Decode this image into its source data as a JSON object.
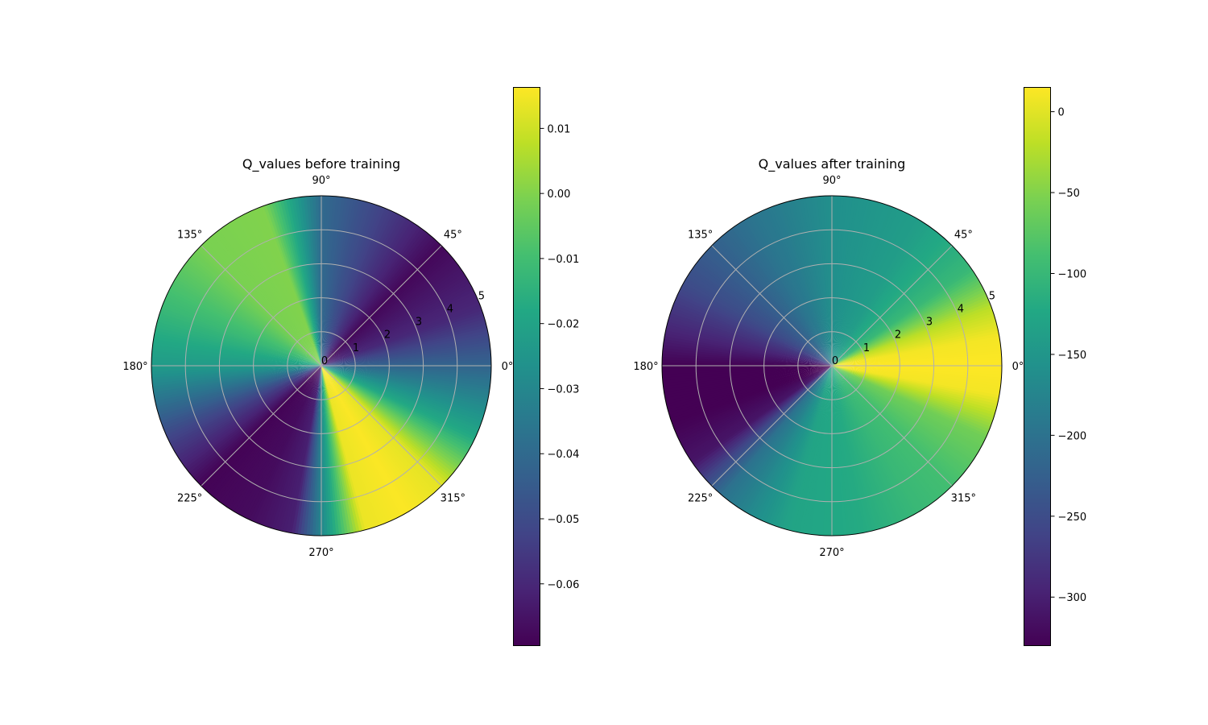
{
  "chart_data": [
    {
      "type": "heatmap",
      "subtype": "polar",
      "title": "Q_values before training",
      "theta_tick_labels": [
        "0°",
        "45°",
        "90°",
        "135°",
        "180°",
        "225°",
        "270°",
        "315°"
      ],
      "theta_ticks_deg": [
        0,
        45,
        90,
        135,
        180,
        225,
        270,
        315
      ],
      "r_tick_labels": [
        "0",
        "1",
        "2",
        "3",
        "4",
        "5"
      ],
      "r_ticks": [
        0,
        1,
        2,
        3,
        4,
        5
      ],
      "rlim": [
        0,
        5
      ],
      "grid": true,
      "colormap": "viridis",
      "colorbar": {
        "range": [
          -0.0695,
          0.0163
        ],
        "ticks": [
          0.01,
          0.0,
          -0.01,
          -0.02,
          -0.03,
          -0.04,
          -0.05,
          -0.06
        ],
        "tick_labels": [
          "0.01",
          "0.00",
          "−0.01",
          "−0.02",
          "−0.03",
          "−0.04",
          "−0.05",
          "−0.06"
        ]
      },
      "value_by_angle": {
        "angle_deg": [
          0,
          20,
          45,
          70,
          90,
          110,
          135,
          160,
          180,
          205,
          225,
          245,
          260,
          270,
          285,
          300,
          315,
          335,
          360
        ],
        "value": [
          -0.042,
          -0.06,
          -0.068,
          -0.052,
          -0.04,
          0.0,
          -0.001,
          -0.012,
          -0.023,
          -0.052,
          -0.069,
          -0.067,
          -0.062,
          -0.03,
          0.014,
          0.016,
          0.013,
          -0.018,
          -0.042
        ]
      }
    },
    {
      "type": "heatmap",
      "subtype": "polar",
      "title": "Q_values after training",
      "theta_tick_labels": [
        "0°",
        "45°",
        "90°",
        "135°",
        "180°",
        "225°",
        "270°",
        "315°"
      ],
      "theta_ticks_deg": [
        0,
        45,
        90,
        135,
        180,
        225,
        270,
        315
      ],
      "r_tick_labels": [
        "0",
        "1",
        "2",
        "3",
        "4",
        "5"
      ],
      "r_ticks": [
        0,
        1,
        2,
        3,
        4,
        5
      ],
      "rlim": [
        0,
        5
      ],
      "grid": true,
      "colormap": "viridis",
      "colorbar": {
        "range": [
          -330,
          15
        ],
        "ticks": [
          0,
          -50,
          -100,
          -150,
          -200,
          -250,
          -300
        ],
        "tick_labels": [
          "0",
          "−50",
          "−100",
          "−150",
          "−200",
          "−250",
          "−300"
        ]
      },
      "value_by_angle": {
        "angle_deg": [
          0,
          10,
          20,
          35,
          60,
          90,
          120,
          150,
          170,
          180,
          200,
          215,
          230,
          255,
          280,
          300,
          315,
          335,
          350,
          360
        ],
        "value": [
          15,
          10,
          -20,
          -100,
          -140,
          -160,
          -200,
          -250,
          -300,
          -330,
          -330,
          -310,
          -200,
          -130,
          -120,
          -100,
          -90,
          -60,
          10,
          15
        ]
      }
    }
  ]
}
